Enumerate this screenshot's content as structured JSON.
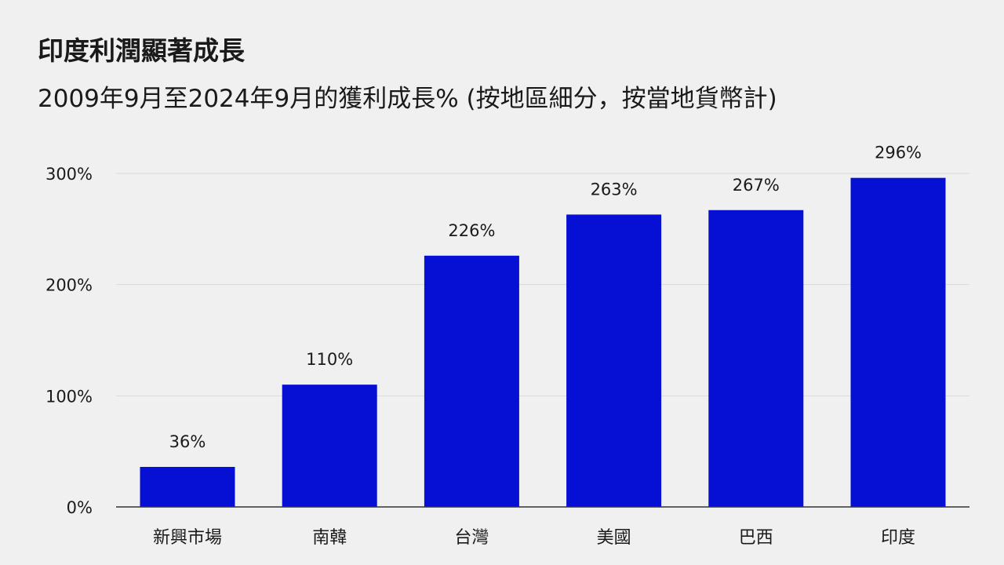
{
  "title": "印度利潤顯著成長",
  "subtitle": "2009年9月至2024年9月的獲利成長% (按地區細分，按當地貨幣計)",
  "colors": {
    "bar": "#0510d4",
    "grid": "#d9d9d9",
    "axis": "#333333",
    "background": "#f0f0f0"
  },
  "chart_data": {
    "type": "bar",
    "categories": [
      "新興市場",
      "南韓",
      "台灣",
      "美國",
      "巴西",
      "印度"
    ],
    "values": [
      36,
      110,
      226,
      263,
      267,
      296
    ],
    "value_labels": [
      "36%",
      "110%",
      "226%",
      "263%",
      "267%",
      "296%"
    ],
    "y_ticks": [
      0,
      100,
      200,
      300
    ],
    "y_tick_labels": [
      "0%",
      "100%",
      "200%",
      "300%"
    ],
    "ylim": [
      0,
      300
    ],
    "grid": true,
    "legend": "none"
  }
}
